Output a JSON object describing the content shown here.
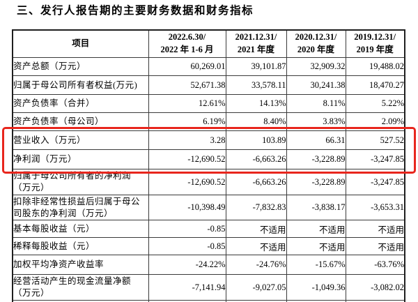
{
  "title": "三、发行人报告期的主要财务数据和财务指标",
  "highlight": {
    "color": "#e8261d",
    "covers_rows": [
      "营业收入（万元）",
      "净利润（万元）"
    ]
  },
  "table": {
    "columns": [
      {
        "line1": "项目",
        "line2": ""
      },
      {
        "line1": "2022.6.30/",
        "line2": "2022 年 1-6 月"
      },
      {
        "line1": "2021.12.31/",
        "line2": "2021 年度"
      },
      {
        "line1": "2020.12.31/",
        "line2": "2020 年度"
      },
      {
        "line1": "2019.12.31/",
        "line2": "2019 年度"
      }
    ],
    "rows": [
      {
        "label": "资产总额（万元）",
        "values": [
          "60,269.01",
          "39,101.87",
          "32,909.32",
          "19,488.02"
        ]
      },
      {
        "label": "归属于母公司所有者权益(万元)",
        "values": [
          "52,671.38",
          "33,578.11",
          "30,241.38",
          "18,470.27"
        ]
      },
      {
        "label": "资产负债率（合并）",
        "values": [
          "12.61%",
          "14.13%",
          "8.11%",
          "5.22%"
        ]
      },
      {
        "label": "资产负债率（母公司）",
        "values": [
          "6.19%",
          "8.40%",
          "3.83%",
          "2.09%"
        ]
      },
      {
        "label": "营业收入（万元）",
        "values": [
          "3.28",
          "103.89",
          "66.31",
          "527.52"
        ]
      },
      {
        "label": "净利润（万元）",
        "values": [
          "-12,690.52",
          "-6,663.26",
          "-3,228.89",
          "-3,247.85"
        ]
      },
      {
        "label": "归属于母公司所有者的净利润（万元）",
        "values": [
          "-12,690.52",
          "-6,663.26",
          "-3,228.89",
          "-3,247.85"
        ]
      },
      {
        "label": "扣除非经常性损益后归属于母公司股东的净利润（万元）",
        "values": [
          "-10,398.49",
          "-7,832.83",
          "-3,838.17",
          "-3,653.31"
        ]
      },
      {
        "label": "基本每股收益（元）",
        "values": [
          "-0.85",
          "不适用",
          "不适用",
          "不适用"
        ]
      },
      {
        "label": "稀释每股收益（元）",
        "values": [
          "-0.85",
          "不适用",
          "不适用",
          "不适用"
        ]
      },
      {
        "label": "加权平均净资产收益率",
        "values": [
          "-24.22%",
          "-24.76%",
          "-15.67%",
          "-63.76%"
        ]
      },
      {
        "label": "经营活动产生的现金流量净额（万元）",
        "values": [
          "-7,141.94",
          "-9,027.05",
          "-1,049.36",
          "-3,082.02"
        ]
      }
    ]
  }
}
